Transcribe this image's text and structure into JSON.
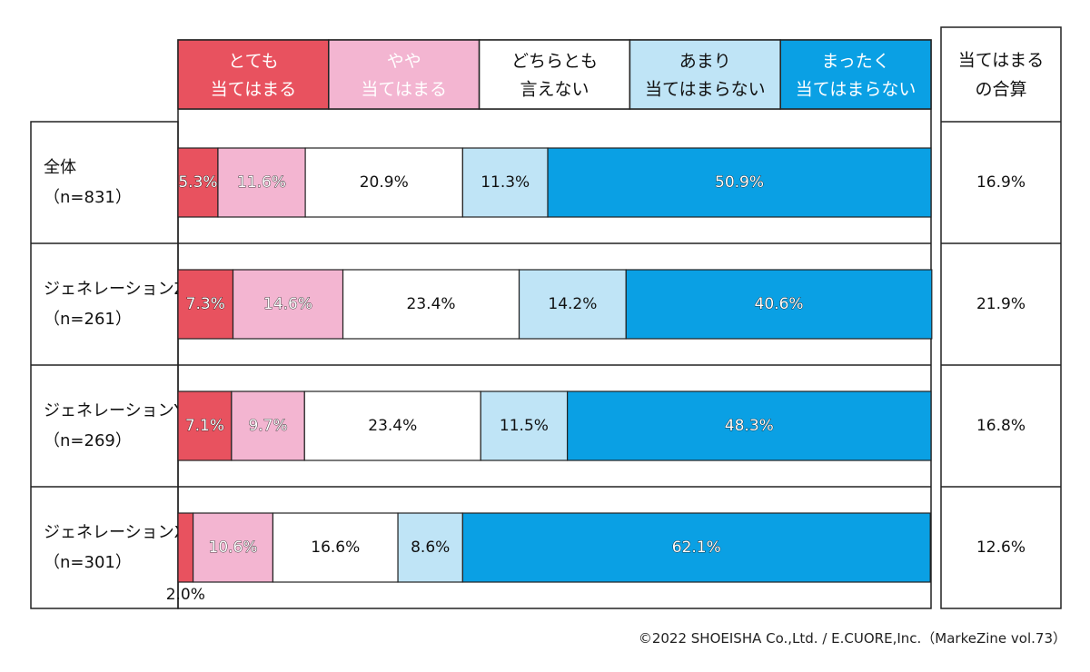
{
  "chart_data": {
    "type": "bar",
    "orientation": "horizontal",
    "stacked": true,
    "unit": "%",
    "categories": [
      [
        "全体",
        "（n=831）"
      ],
      [
        "ジェネレーションZ",
        "（n=261）"
      ],
      [
        "ジェネレーションY",
        "（n=269）"
      ],
      [
        "ジェネレーションX",
        "（n=301）"
      ]
    ],
    "series": [
      {
        "name": [
          "とても",
          "当てはまる"
        ],
        "color": "#e8525f",
        "text_color": "#ffffff",
        "values": [
          5.3,
          7.3,
          7.1,
          2.0
        ]
      },
      {
        "name": [
          "やや",
          "当てはまる"
        ],
        "color": "#f3b5d1",
        "text_color": "#ffffff",
        "values": [
          11.6,
          14.6,
          9.7,
          10.6
        ]
      },
      {
        "name": [
          "どちらとも",
          "言えない"
        ],
        "color": "#ffffff",
        "text_color": "#111111",
        "values": [
          20.9,
          23.4,
          23.4,
          16.6
        ]
      },
      {
        "name": [
          "あまり",
          "当てはまらない"
        ],
        "color": "#bfe4f6",
        "text_color": "#111111",
        "values": [
          11.3,
          14.2,
          11.5,
          8.6
        ]
      },
      {
        "name": [
          "まったく",
          "当てはまらない"
        ],
        "color": "#0aa0e4",
        "text_color": "#ffffff",
        "values": [
          50.9,
          40.6,
          48.3,
          62.1
        ]
      }
    ],
    "value_labels": [
      [
        "5.3%",
        "11.6%",
        "20.9%",
        "11.3%",
        "50.9%"
      ],
      [
        "7.3%",
        "14.6%",
        "23.4%",
        "14.2%",
        "40.6%"
      ],
      [
        "7.1%",
        "9.7%",
        "23.4%",
        "11.5%",
        "48.3%"
      ],
      [
        "2.0%",
        "10.6%",
        "16.6%",
        "8.6%",
        "62.1%"
      ]
    ],
    "total_column": {
      "header": [
        "当てはまる",
        "の合算"
      ],
      "values": [
        "16.9%",
        "21.9%",
        "16.8%",
        "12.6%"
      ]
    },
    "xlim": [
      0,
      100
    ],
    "legend_position": "top"
  },
  "copyright": "©2022 SHOEISHA Co.,Ltd. / E.CUORE,Inc.（MarkeZine vol.73）"
}
